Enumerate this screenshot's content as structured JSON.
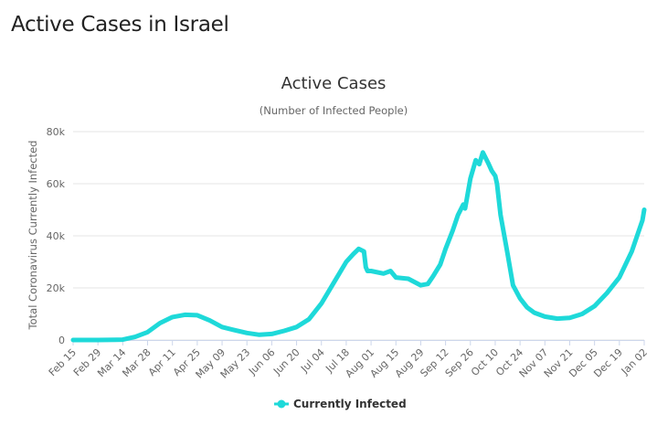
{
  "page": {
    "heading": "Active Cases in Israel"
  },
  "chart_data": {
    "type": "line",
    "title": "Active Cases",
    "subtitle": "(Number of Infected People)",
    "xlabel": "",
    "ylabel": "Total Coronavirus Currently Infected",
    "x_tick_labels": [
      "Feb 15",
      "Feb 29",
      "Mar 14",
      "Mar 28",
      "Apr 11",
      "Apr 25",
      "May 09",
      "May 23",
      "Jun 06",
      "Jun 20",
      "Jul 04",
      "Jul 18",
      "Aug 01",
      "Aug 15",
      "Aug 29",
      "Sep 12",
      "Sep 26",
      "Oct 10",
      "Oct 24",
      "Nov 07",
      "Nov 21",
      "Dec 05",
      "Dec 19",
      "Jan 02"
    ],
    "y_ticks": [
      0,
      20000,
      40000,
      60000,
      80000
    ],
    "y_tick_labels": [
      "0",
      "20k",
      "40k",
      "60k",
      "80k"
    ],
    "ylim": [
      0,
      80000
    ],
    "xlim": [
      "Feb 15",
      "Jan 02"
    ],
    "grid": true,
    "legend_position": "bottom-center",
    "series": [
      {
        "name": "Currently Infected",
        "color": "#1ed9d9",
        "points": [
          [
            "Feb 15",
            0
          ],
          [
            "Feb 29",
            0
          ],
          [
            "Mar 14",
            150
          ],
          [
            "Mar 21",
            1200
          ],
          [
            "Mar 28",
            3000
          ],
          [
            "Apr 04",
            6500
          ],
          [
            "Apr 11",
            8800
          ],
          [
            "Apr 18",
            9700
          ],
          [
            "Apr 25",
            9500
          ],
          [
            "May 02",
            7500
          ],
          [
            "May 09",
            5000
          ],
          [
            "May 16",
            3800
          ],
          [
            "May 23",
            2700
          ],
          [
            "May 30",
            2000
          ],
          [
            "Jun 06",
            2300
          ],
          [
            "Jun 13",
            3500
          ],
          [
            "Jun 20",
            5000
          ],
          [
            "Jun 27",
            8000
          ],
          [
            "Jul 04",
            14000
          ],
          [
            "Jul 11",
            22000
          ],
          [
            "Jul 18",
            30000
          ],
          [
            "Jul 22",
            33000
          ],
          [
            "Jul 25",
            35000
          ],
          [
            "Jul 28",
            34000
          ],
          [
            "Jul 29",
            28000
          ],
          [
            "Jul 30",
            26500
          ],
          [
            "Aug 01",
            26500
          ],
          [
            "Aug 08",
            25500
          ],
          [
            "Aug 12",
            26500
          ],
          [
            "Aug 15",
            24000
          ],
          [
            "Aug 22",
            23500
          ],
          [
            "Aug 29",
            21000
          ],
          [
            "Sep 02",
            21500
          ],
          [
            "Sep 05",
            24500
          ],
          [
            "Sep 09",
            29000
          ],
          [
            "Sep 12",
            35000
          ],
          [
            "Sep 16",
            42000
          ],
          [
            "Sep 19",
            48000
          ],
          [
            "Sep 22",
            52000
          ],
          [
            "Sep 23",
            50500
          ],
          [
            "Sep 26",
            62000
          ],
          [
            "Sep 29",
            69000
          ],
          [
            "Oct 01",
            67500
          ],
          [
            "Oct 03",
            72000
          ],
          [
            "Oct 06",
            68000
          ],
          [
            "Oct 08",
            65000
          ],
          [
            "Oct 10",
            63000
          ],
          [
            "Oct 11",
            60000
          ],
          [
            "Oct 13",
            48000
          ],
          [
            "Oct 17",
            33000
          ],
          [
            "Oct 20",
            21000
          ],
          [
            "Oct 24",
            16000
          ],
          [
            "Oct 28",
            12500
          ],
          [
            "Nov 01",
            10500
          ],
          [
            "Nov 07",
            9000
          ],
          [
            "Nov 14",
            8200
          ],
          [
            "Nov 21",
            8500
          ],
          [
            "Nov 28",
            10000
          ],
          [
            "Dec 05",
            13000
          ],
          [
            "Dec 12",
            18000
          ],
          [
            "Dec 19",
            24000
          ],
          [
            "Dec 26",
            34000
          ],
          [
            "Jan 01",
            46000
          ],
          [
            "Jan 02",
            50000
          ]
        ]
      }
    ]
  }
}
